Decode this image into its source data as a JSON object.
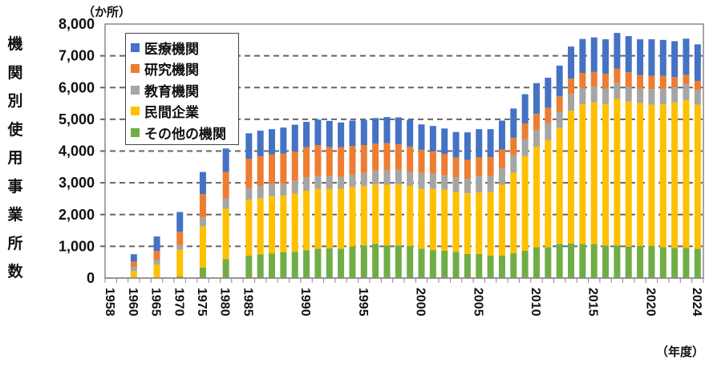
{
  "chart_data": {
    "type": "bar",
    "stacked": true,
    "ylabel": "機関別使用事業所数",
    "y_unit": "（か所）",
    "x_unit": "（年度）",
    "ylim": [
      0,
      8000
    ],
    "yticks": [
      "0",
      "1,000",
      "2,000",
      "3,000",
      "4,000",
      "5,000",
      "6,000",
      "7,000",
      "8,000"
    ],
    "grid": "horizontal dashed",
    "legend_position": "top-left",
    "categories": [
      "1958",
      "",
      "1960",
      "",
      "1965",
      "",
      "1970",
      "",
      "1975",
      "",
      "1980",
      "",
      "1985",
      "1986",
      "1987",
      "1988",
      "1989",
      "1990",
      "1991",
      "1992",
      "1993",
      "1994",
      "1995",
      "1996",
      "1997",
      "1998",
      "1999",
      "2000",
      "2001",
      "2002",
      "2003",
      "2004",
      "2005",
      "2006",
      "2007",
      "2008",
      "2009",
      "2010",
      "2011",
      "2012",
      "2013",
      "2014",
      "2015",
      "2016",
      "2017",
      "2018",
      "2019",
      "2020",
      "2021",
      "2022",
      "2023",
      "2024"
    ],
    "tick_labels": [
      "1958",
      "1960",
      "1965",
      "1970",
      "1975",
      "1980",
      "1985",
      "1990",
      "1995",
      "2000",
      "2005",
      "2010",
      "2015",
      "2020",
      "2024"
    ],
    "series": [
      {
        "name": "その他の機関",
        "color": "#70AD47",
        "values": [
          null,
          null,
          0,
          null,
          0,
          null,
          50,
          null,
          330,
          null,
          600,
          null,
          710,
          750,
          770,
          810,
          830,
          870,
          920,
          940,
          920,
          990,
          1030,
          1080,
          1030,
          1030,
          1010,
          920,
          880,
          860,
          820,
          760,
          760,
          710,
          710,
          780,
          860,
          970,
          970,
          1070,
          1090,
          1070,
          1070,
          1030,
          1030,
          990,
          1010,
          1010,
          970,
          950,
          950,
          920
        ]
      },
      {
        "name": "民間企業",
        "color": "#FFC000",
        "values": [
          null,
          null,
          220,
          null,
          430,
          null,
          840,
          null,
          1300,
          null,
          1580,
          null,
          1760,
          1760,
          1810,
          1790,
          1830,
          1880,
          1890,
          1870,
          1890,
          1870,
          1870,
          1870,
          1910,
          1920,
          1890,
          1890,
          1930,
          1920,
          1880,
          1910,
          1930,
          2000,
          2230,
          2540,
          2980,
          3170,
          3380,
          3660,
          4180,
          4400,
          4460,
          4450,
          4610,
          4570,
          4500,
          4450,
          4500,
          4580,
          4660,
          4540
        ]
      },
      {
        "name": "教育機関",
        "color": "#A5A5A5",
        "values": [
          null,
          null,
          130,
          null,
          150,
          null,
          150,
          null,
          280,
          null,
          330,
          null,
          360,
          390,
          380,
          380,
          400,
          420,
          420,
          420,
          380,
          400,
          420,
          440,
          450,
          460,
          440,
          500,
          480,
          460,
          470,
          460,
          520,
          500,
          520,
          550,
          530,
          530,
          530,
          500,
          530,
          520,
          500,
          490,
          500,
          460,
          460,
          490,
          490,
          480,
          500,
          460
        ]
      },
      {
        "name": "研究機関",
        "color": "#ED7D31",
        "values": [
          null,
          null,
          170,
          null,
          270,
          null,
          420,
          null,
          740,
          null,
          830,
          null,
          930,
          940,
          930,
          940,
          930,
          950,
          960,
          900,
          930,
          900,
          870,
          840,
          860,
          800,
          800,
          730,
          700,
          670,
          630,
          590,
          590,
          600,
          590,
          550,
          500,
          500,
          480,
          490,
          480,
          470,
          460,
          460,
          460,
          460,
          420,
          420,
          410,
          320,
          290,
          290
        ]
      },
      {
        "name": "医療機関",
        "color": "#4472C4",
        "values": [
          null,
          null,
          230,
          null,
          460,
          null,
          620,
          null,
          690,
          null,
          740,
          null,
          800,
          800,
          800,
          820,
          840,
          800,
          800,
          820,
          780,
          800,
          790,
          810,
          820,
          850,
          840,
          800,
          800,
          800,
          800,
          870,
          890,
          880,
          910,
          920,
          920,
          970,
          950,
          970,
          1010,
          1070,
          1090,
          1090,
          1120,
          1140,
          1130,
          1150,
          1130,
          1130,
          1140,
          1150
        ]
      }
    ],
    "legend_order": [
      "医療機関",
      "研究機関",
      "教育機関",
      "民間企業",
      "その他の機関"
    ]
  }
}
